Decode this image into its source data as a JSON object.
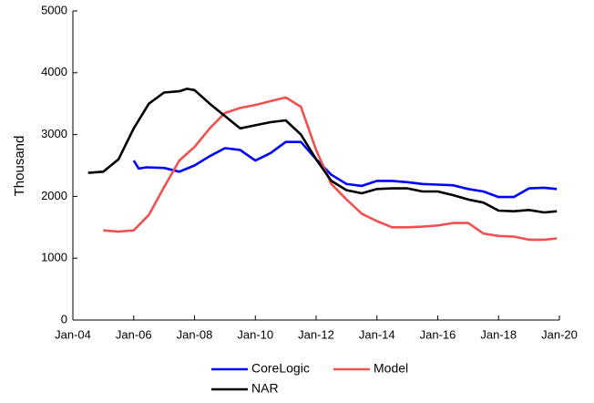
{
  "chart_data": {
    "type": "line",
    "y_label": "Thousand",
    "xlim": [
      "2004-01",
      "2020-01"
    ],
    "xticks": [
      {
        "value": "2004-01",
        "label": "Jan-04"
      },
      {
        "value": "2006-01",
        "label": "Jan-06"
      },
      {
        "value": "2008-01",
        "label": "Jan-08"
      },
      {
        "value": "2010-01",
        "label": "Jan-10"
      },
      {
        "value": "2012-01",
        "label": "Jan-12"
      },
      {
        "value": "2014-01",
        "label": "Jan-14"
      },
      {
        "value": "2016-01",
        "label": "Jan-16"
      },
      {
        "value": "2018-01",
        "label": "Jan-18"
      },
      {
        "value": "2020-01",
        "label": "Jan-20"
      }
    ],
    "ylim": [
      0,
      5000
    ],
    "yticks": [
      0,
      1000,
      2000,
      3000,
      4000,
      5000
    ],
    "grid": false,
    "legend": "bottom",
    "series": [
      {
        "name": "CoreLogic",
        "color": "#0000ff",
        "x": [
          "2006-01",
          "2006-03",
          "2006-06",
          "2007-01",
          "2007-07",
          "2008-01",
          "2008-07",
          "2009-01",
          "2009-07",
          "2010-01",
          "2010-07",
          "2011-01",
          "2011-07",
          "2012-01",
          "2012-07",
          "2013-01",
          "2013-07",
          "2014-01",
          "2014-07",
          "2015-01",
          "2015-07",
          "2016-01",
          "2016-07",
          "2017-01",
          "2017-07",
          "2018-01",
          "2018-07",
          "2019-01",
          "2019-07",
          "2019-12"
        ],
        "values": [
          2580,
          2450,
          2470,
          2460,
          2400,
          2500,
          2650,
          2780,
          2750,
          2580,
          2700,
          2880,
          2880,
          2600,
          2350,
          2200,
          2170,
          2250,
          2250,
          2230,
          2200,
          2190,
          2180,
          2120,
          2080,
          1990,
          1990,
          2130,
          2140,
          2120
        ]
      },
      {
        "name": "Model",
        "color": "#f05050",
        "x": [
          "2005-01",
          "2005-07",
          "2006-01",
          "2006-07",
          "2007-01",
          "2007-07",
          "2008-01",
          "2008-07",
          "2009-01",
          "2009-07",
          "2010-01",
          "2010-07",
          "2011-01",
          "2011-07",
          "2012-01",
          "2012-07",
          "2013-01",
          "2013-07",
          "2014-01",
          "2014-07",
          "2015-01",
          "2015-07",
          "2016-01",
          "2016-07",
          "2017-01",
          "2017-07",
          "2018-01",
          "2018-07",
          "2019-01",
          "2019-07",
          "2019-12"
        ],
        "values": [
          1450,
          1430,
          1450,
          1700,
          2150,
          2580,
          2800,
          3100,
          3350,
          3430,
          3480,
          3540,
          3600,
          3450,
          2750,
          2200,
          1950,
          1720,
          1600,
          1500,
          1500,
          1510,
          1530,
          1570,
          1570,
          1400,
          1360,
          1350,
          1300,
          1300,
          1320
        ]
      },
      {
        "name": "NAR",
        "color": "#000000",
        "x": [
          "2004-07",
          "2005-01",
          "2005-07",
          "2006-01",
          "2006-07",
          "2007-01",
          "2007-07",
          "2007-10",
          "2008-01",
          "2008-07",
          "2009-01",
          "2009-07",
          "2010-01",
          "2010-07",
          "2011-01",
          "2011-07",
          "2012-01",
          "2012-07",
          "2013-01",
          "2013-07",
          "2014-01",
          "2014-07",
          "2015-01",
          "2015-07",
          "2016-01",
          "2016-07",
          "2017-01",
          "2017-07",
          "2018-01",
          "2018-07",
          "2019-01",
          "2019-07",
          "2019-12"
        ],
        "values": [
          2380,
          2400,
          2600,
          3100,
          3500,
          3680,
          3700,
          3740,
          3720,
          3500,
          3300,
          3100,
          3150,
          3200,
          3230,
          3000,
          2600,
          2250,
          2100,
          2050,
          2120,
          2130,
          2130,
          2080,
          2080,
          2020,
          1950,
          1900,
          1770,
          1760,
          1780,
          1740,
          1760
        ]
      }
    ]
  }
}
